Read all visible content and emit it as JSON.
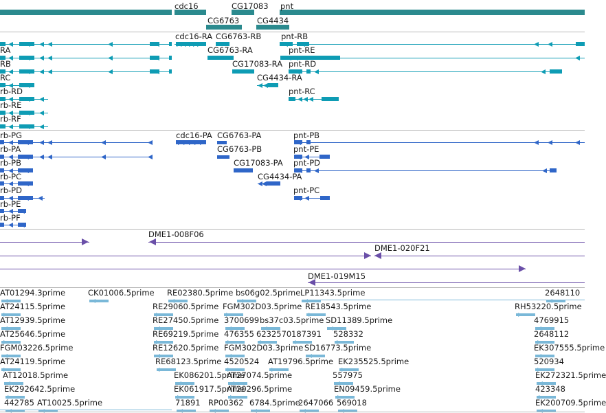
{
  "colors": {
    "gene": "#2b8a8e",
    "rna": "#0e9cb4",
    "protein": "#2f66c8",
    "clone": "#6a4fa8",
    "est": "#7ab8d8",
    "separator": "#b8b8b8"
  },
  "tracks": {
    "gene_labels": [
      "cdc16",
      "CG17083",
      "pnt",
      "CG6763",
      "CG4434"
    ],
    "rna_labels": [
      "cdc16-RA",
      "CG6763-RB",
      "pnt-RB",
      "RA",
      "CG6763-RA",
      "pnt-RE",
      "RB",
      "CG17083-RA",
      "pnt-RD",
      "RC",
      "CG4434-RA",
      "rb-RD",
      "pnt-RC",
      "rb-RE",
      "rb-RF"
    ],
    "protein_labels": [
      "rb-PG",
      "cdc16-PA",
      "CG6763-PA",
      "pnt-PB",
      "rb-PA",
      "CG6763-PB",
      "pnt-PE",
      "rb-PB",
      "CG17083-PA",
      "pnt-PD",
      "rb-PC",
      "CG4434-PA",
      "rb-PD",
      "pnt-PC",
      "rb-PE",
      "rb-PF"
    ],
    "clone_labels": [
      "DME1-008F06",
      "DME1-020F21",
      "DME1-019M15"
    ],
    "est_labels": [
      "AT01294.3prime",
      "CK01006.5prime",
      "RE02380.5prime",
      "bs06g02.5prime",
      "LP11343.5prime",
      "2648110",
      "AT24115.5prime",
      "RE29060.5prime",
      "FGM302D03.5prime",
      "RE18543.5prime",
      "RH53220.5prime",
      "AT12939.5prime",
      "RE27450.5prime",
      "3700699",
      "bs37c03.5prime",
      "SD11389.5prime",
      "4769915",
      "AT25646.5prime",
      "RE69219.5prime",
      "476355",
      "6232570",
      "187391",
      "528332",
      "2648112",
      "FGM03226.5prime",
      "RE12620.5prime",
      "FGM302D03.3prime",
      "SD16773.5prime",
      "EK307555.5prime",
      "AT24119.5prime",
      "RE68123.5prime",
      "4520524",
      "AT19796.5prime",
      "EK235525.5prime",
      "520934",
      "AT12018.5prime",
      "EK086201.5prime",
      "AT27074.5prime",
      "557975",
      "EK272321.5prime",
      "EK292642.5prime",
      "EK061917.5prime",
      "AT20296.5prime",
      "EN09459.5prime",
      "423348",
      "442785",
      "AT10025.5prime",
      "71891",
      "RP00362",
      "6784.5prime",
      "2647066",
      "569018",
      "EK200709.5prime"
    ]
  }
}
